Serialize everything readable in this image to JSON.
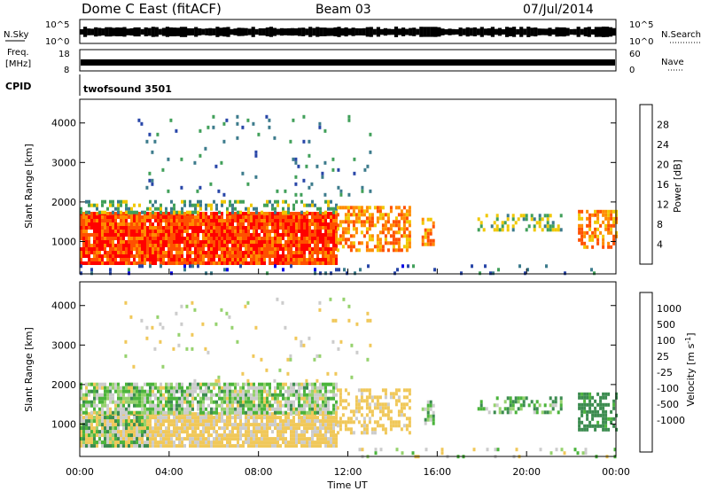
{
  "header": {
    "title": "Dome C East (fitACF)",
    "beam": "Beam 03",
    "date": "07/Jul/2014"
  },
  "top_panels": {
    "nsky_label": "N.Sky",
    "nsky_ticks": [
      "10^5",
      "10^0"
    ],
    "nsearch_label": "N.Search",
    "nsearch_ticks": [
      "10^5",
      "10^0"
    ],
    "freq_label": "Freq.",
    "freq_unit": "[MHz]",
    "freq_ticks": [
      "18",
      "8"
    ],
    "nave_label": "Nave",
    "nave_ticks": [
      "60",
      "0"
    ],
    "cpid_label": "CPID",
    "cpid_value": "twofsound 3501"
  },
  "colors": {
    "power_scale": [
      "#0000e6",
      "#2846a8",
      "#3c7b8c",
      "#41a05a",
      "#f0c800",
      "#ff8c00",
      "#ff5000",
      "#ff0000"
    ],
    "velocity_scale": [
      "#ff0000",
      "#ff5a00",
      "#ff8c1e",
      "#f0c85a",
      "#cccccc",
      "#96d26e",
      "#4bb43c",
      "#3c8c50",
      "#28649b",
      "#1e3cb4"
    ]
  },
  "chart_data": [
    {
      "type": "heatmap",
      "panel": "power",
      "ylabel": "Slant Range [km]",
      "xlim": [
        0,
        24
      ],
      "ylim": [
        180,
        4600
      ],
      "y_ticks": [
        "1000",
        "2000",
        "3000",
        "4000"
      ],
      "colorbar": {
        "label": "Power [dB]",
        "ticks": [
          "4",
          "8",
          "12",
          "16",
          "20",
          "24",
          "28"
        ],
        "range": [
          0,
          32
        ]
      },
      "regions": [
        {
          "t": [
            0,
            11.5
          ],
          "r": [
            450,
            1750
          ],
          "v": 27,
          "d": 0.95
        },
        {
          "t": [
            0,
            11.5
          ],
          "r": [
            1750,
            2050
          ],
          "v": 14,
          "d": 0.45
        },
        {
          "t": [
            11.5,
            14.8
          ],
          "r": [
            800,
            1900
          ],
          "v": 22,
          "d": 0.55
        },
        {
          "t": [
            15.3,
            15.8
          ],
          "r": [
            900,
            1600
          ],
          "v": 22,
          "d": 0.6
        },
        {
          "t": [
            17.8,
            21.5
          ],
          "r": [
            1300,
            1700
          ],
          "v": 15,
          "d": 0.45
        },
        {
          "t": [
            22.3,
            24
          ],
          "r": [
            900,
            1800
          ],
          "v": 23,
          "d": 0.6
        },
        {
          "t": [
            0,
            24
          ],
          "r": [
            220,
            420
          ],
          "v": 8,
          "d": 0.12
        },
        {
          "t": [
            2,
            13
          ],
          "r": [
            2100,
            4200
          ],
          "v": 10,
          "d": 0.04
        }
      ]
    },
    {
      "type": "heatmap",
      "panel": "velocity",
      "xlabel": "Time UT",
      "ylabel": "Slant Range [km]",
      "xlim": [
        0,
        24
      ],
      "ylim": [
        180,
        4600
      ],
      "x_ticks": [
        "00:00",
        "04:00",
        "08:00",
        "12:00",
        "16:00",
        "20:00",
        "00:00"
      ],
      "y_ticks": [
        "1000",
        "2000",
        "3000",
        "4000"
      ],
      "colorbar": {
        "label": "Velocity [m s^-1]",
        "ticks": [
          "1000",
          "500",
          "100",
          "25",
          "-25",
          "-100",
          "-500",
          "-1000"
        ]
      },
      "regions": [
        {
          "t": [
            0,
            11.5
          ],
          "r": [
            450,
            1300
          ],
          "v": -150,
          "d": 0.9
        },
        {
          "t": [
            0,
            3
          ],
          "r": [
            450,
            1300
          ],
          "v": 60,
          "d": 0.5
        },
        {
          "t": [
            0,
            11.5
          ],
          "r": [
            1300,
            2050
          ],
          "v": 0,
          "d": 0.8
        },
        {
          "t": [
            11.5,
            14.8
          ],
          "r": [
            800,
            1900
          ],
          "v": -200,
          "d": 0.5
        },
        {
          "t": [
            15.3,
            15.8
          ],
          "r": [
            900,
            1600
          ],
          "v": 40,
          "d": 0.55
        },
        {
          "t": [
            17.8,
            21.5
          ],
          "r": [
            1300,
            1700
          ],
          "v": 80,
          "d": 0.45
        },
        {
          "t": [
            22.3,
            24
          ],
          "r": [
            900,
            1800
          ],
          "v": 200,
          "d": 0.55
        },
        {
          "t": [
            12,
            24
          ],
          "r": [
            220,
            400
          ],
          "v": -40,
          "d": 0.15
        },
        {
          "t": [
            2,
            13
          ],
          "r": [
            2100,
            4200
          ],
          "v": -100,
          "d": 0.04
        }
      ]
    }
  ]
}
